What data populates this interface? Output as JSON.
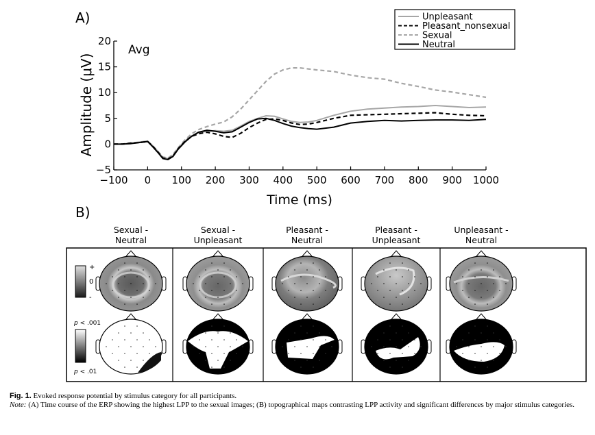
{
  "panel_a_label": "A)",
  "panel_b_label": "B)",
  "chart_data": {
    "type": "line",
    "annotation": "Avg",
    "xlabel": "Time (ms)",
    "ylabel": "Amplitude (μV)",
    "xlim": [
      -100,
      1000
    ],
    "ylim": [
      -5,
      20
    ],
    "xticks": [
      -100,
      0,
      100,
      200,
      300,
      400,
      500,
      600,
      700,
      800,
      900,
      1000
    ],
    "yticks": [
      -5,
      0,
      5,
      10,
      15,
      20
    ],
    "xtick_labels": [
      "−100",
      "0",
      "100",
      "200",
      "300",
      "400",
      "500",
      "600",
      "700",
      "800",
      "900",
      "1000"
    ],
    "ytick_labels": [
      "−5",
      "0",
      "5",
      "10",
      "15",
      "20"
    ],
    "grid": false,
    "legend_position": "top-right",
    "x": [
      -100,
      -75,
      -50,
      -25,
      0,
      15,
      30,
      45,
      60,
      75,
      90,
      110,
      130,
      150,
      175,
      200,
      225,
      250,
      275,
      300,
      325,
      350,
      375,
      400,
      425,
      450,
      475,
      500,
      550,
      600,
      650,
      700,
      750,
      800,
      850,
      900,
      950,
      1000
    ],
    "series": [
      {
        "name": "Unpleasant",
        "color": "#a6a6a6",
        "dash": "solid",
        "values": [
          0,
          0,
          0.2,
          0.4,
          0.6,
          -0.3,
          -1.4,
          -2.6,
          -2.8,
          -2.2,
          -0.8,
          0.6,
          1.6,
          2.2,
          2.5,
          2.6,
          2.5,
          2.7,
          3.5,
          4.4,
          5.0,
          5.5,
          5.4,
          4.9,
          4.4,
          4.2,
          4.3,
          4.6,
          5.6,
          6.4,
          6.8,
          7.0,
          7.2,
          7.3,
          7.5,
          7.3,
          7.1,
          7.2
        ]
      },
      {
        "name": "Pleasant_nonsexual",
        "color": "#000000",
        "dash": "dashed",
        "values": [
          0,
          0,
          0.2,
          0.3,
          0.5,
          -0.4,
          -1.5,
          -2.7,
          -2.9,
          -2.3,
          -0.9,
          0.5,
          1.5,
          2.0,
          2.3,
          2.0,
          1.5,
          1.3,
          2.1,
          3.2,
          4.1,
          4.8,
          4.9,
          4.6,
          4.1,
          3.8,
          3.9,
          4.2,
          5.0,
          5.6,
          5.7,
          5.8,
          5.9,
          6.0,
          6.1,
          5.8,
          5.6,
          5.5
        ]
      },
      {
        "name": "Sexual",
        "color": "#a6a6a6",
        "dash": "dashed",
        "values": [
          0,
          0,
          0.1,
          0.3,
          0.5,
          -0.4,
          -1.4,
          -2.5,
          -2.7,
          -2.0,
          -0.7,
          0.8,
          2.0,
          2.8,
          3.4,
          3.9,
          4.3,
          5.3,
          6.8,
          8.6,
          10.4,
          12.2,
          13.6,
          14.4,
          14.8,
          14.8,
          14.6,
          14.4,
          14.1,
          13.4,
          12.9,
          12.6,
          11.8,
          11.2,
          10.5,
          10.1,
          9.6,
          9.1
        ]
      },
      {
        "name": "Neutral",
        "color": "#000000",
        "dash": "solid",
        "values": [
          0,
          0,
          0.1,
          0.3,
          0.5,
          -0.5,
          -1.6,
          -2.8,
          -3.0,
          -2.4,
          -1.0,
          0.4,
          1.5,
          2.3,
          2.7,
          2.5,
          2.2,
          2.4,
          3.3,
          4.2,
          4.9,
          5.0,
          4.6,
          4.0,
          3.5,
          3.2,
          3.0,
          2.9,
          3.3,
          4.1,
          4.4,
          4.6,
          4.5,
          4.6,
          4.7,
          4.7,
          4.6,
          4.8
        ]
      }
    ]
  },
  "topomap": {
    "columns": [
      {
        "title1": "Sexual -",
        "title2": "Neutral"
      },
      {
        "title1": "Sexual -",
        "title2": "Unpleasant"
      },
      {
        "title1": "Pleasant -",
        "title2": "Neutral"
      },
      {
        "title1": "Pleasant -",
        "title2": "Unpleasant"
      },
      {
        "title1": "Unpleasant -",
        "title2": "Neutral"
      }
    ],
    "scale_top": {
      "plus": "+",
      "zero": "0",
      "minus": "-"
    },
    "scale_bottom": {
      "top_p": "p",
      "top_val": " < .001",
      "bottom_p": "p",
      "bottom_val": " < .01"
    }
  },
  "caption": {
    "fig_label": "Fig. 1.",
    "fig_text": "  Evoked response potential by stimulus category for all participants.",
    "note_label": "Note:",
    "note_text": " (A) Time course of the ERP showing the highest LPP to the sexual images; (B) topographical maps contrasting LPP activity and significant differences by major stimulus categories."
  }
}
